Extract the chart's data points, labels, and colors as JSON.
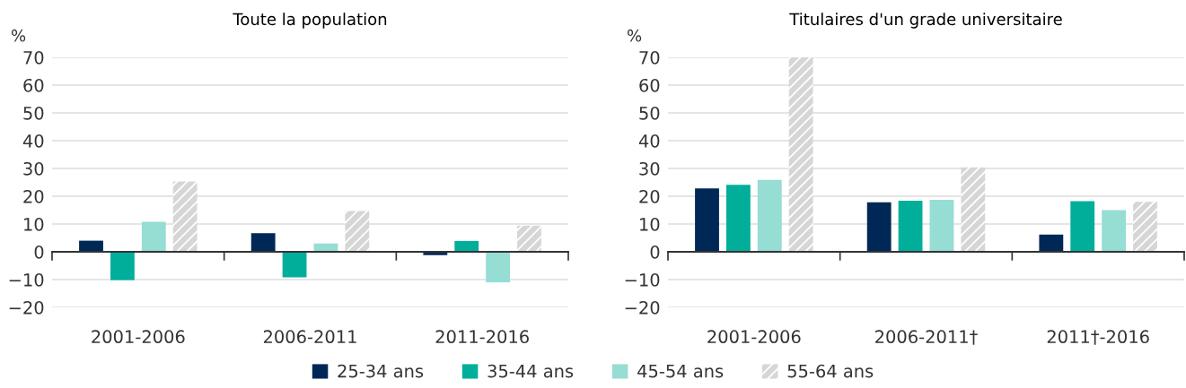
{
  "chart_data": [
    {
      "type": "bar",
      "title": "Toute la population",
      "ylabel": "%",
      "categories": [
        "2001-2006",
        "2006-2011",
        "2011-2016"
      ],
      "series": [
        {
          "name": "25-34 ans",
          "color": "#002856",
          "values": [
            4.0,
            6.7,
            -1.2
          ]
        },
        {
          "name": "35-44 ans",
          "color": "#00ae9a",
          "values": [
            -10.2,
            -9.2,
            3.9
          ]
        },
        {
          "name": "45-54 ans",
          "color": "#96ddd4",
          "values": [
            10.8,
            3.0,
            -11.0
          ]
        },
        {
          "name": "55-64 ans",
          "color": "#d6d6d6",
          "values": [
            25.3,
            14.7,
            9.4
          ]
        }
      ],
      "ylim": [
        -20,
        70
      ],
      "yticks": [
        -20,
        -10,
        0,
        10,
        20,
        30,
        40,
        50,
        60,
        70
      ],
      "grid": "y",
      "legend": "bottom"
    },
    {
      "type": "bar",
      "title": "Titulaires d'un grade universitaire",
      "ylabel": "%",
      "categories": [
        "2001-2006",
        "2006-2011†",
        "2011†-2016"
      ],
      "series": [
        {
          "name": "25-34 ans",
          "color": "#002856",
          "values": [
            22.8,
            17.8,
            6.2
          ]
        },
        {
          "name": "35-44 ans",
          "color": "#00ae9a",
          "values": [
            24.1,
            18.4,
            18.2
          ]
        },
        {
          "name": "45-54 ans",
          "color": "#96ddd4",
          "values": [
            25.9,
            18.7,
            15.0
          ]
        },
        {
          "name": "55-64 ans",
          "color": "#d6d6d6",
          "values": [
            70,
            30.4,
            18.0
          ]
        }
      ],
      "ylim": [
        -20,
        70
      ],
      "yticks": [
        -20,
        -10,
        0,
        10,
        20,
        30,
        40,
        50,
        60,
        70
      ],
      "grid": "y"
    }
  ]
}
